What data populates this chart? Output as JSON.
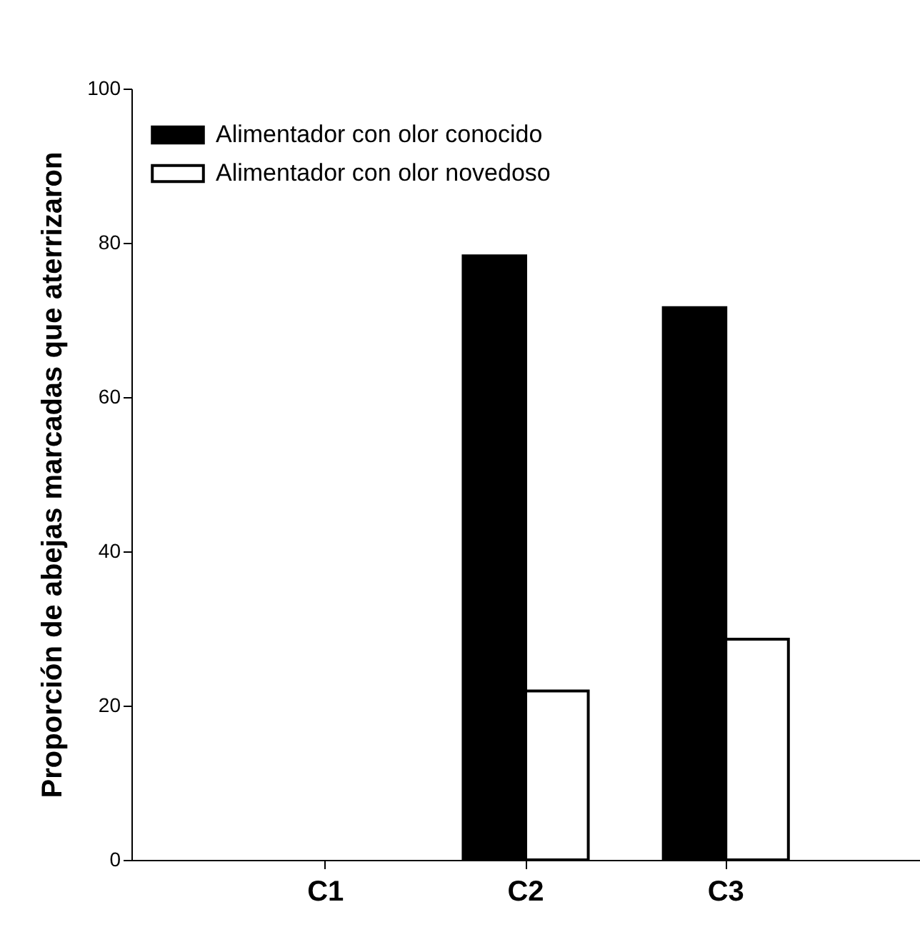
{
  "chart_data": {
    "type": "bar",
    "ylabel": "Proporción de abejas marcadas que aterrizaron",
    "categories": [
      "C1",
      "C2",
      "C3"
    ],
    "series": [
      {
        "name": "Alimentador con olor conocido",
        "color": "#000000",
        "values": [
          0,
          78.3,
          71.6
        ]
      },
      {
        "name": "Alimentador con olor novedoso",
        "color": "#ffffff",
        "values": [
          0,
          21.9,
          28.6
        ]
      }
    ],
    "ylim": [
      0,
      100
    ],
    "yticks": [
      0,
      20,
      40,
      60,
      80,
      100
    ],
    "grid": false,
    "legend": "top left"
  }
}
